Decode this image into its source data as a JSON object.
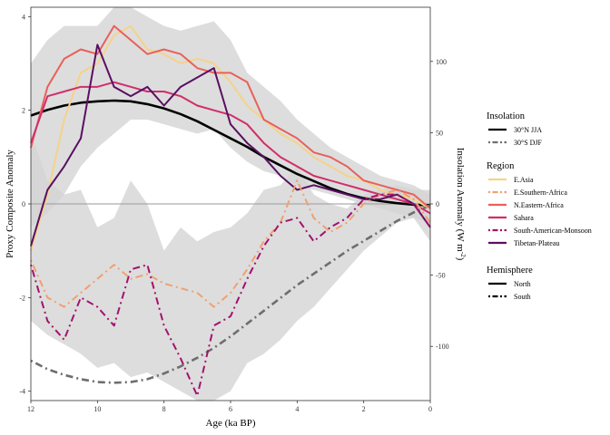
{
  "chart_data": {
    "type": "line",
    "xlabel": "Age (ka BP)",
    "ylabel": "Proxy Composite Anomaly",
    "y2label": "Insolation Anomaly (W m^-2)",
    "y2label_parts": {
      "main": "Insolation Anomaly (W m",
      "sup": "-2",
      "end": ")"
    },
    "xlim": [
      12,
      0
    ],
    "ylim": [
      -4.2,
      4.2
    ],
    "y2lim": [
      -138,
      138
    ],
    "x_reversed": true,
    "x_ticks": [
      12,
      10,
      8,
      6,
      4,
      2,
      0
    ],
    "y_ticks": [
      -4,
      -2,
      0,
      2,
      4
    ],
    "y2_ticks": [
      -100,
      -50,
      0,
      50,
      100
    ],
    "grid": false,
    "zero_line": true,
    "legend_position": "right",
    "legends": [
      {
        "title": "Insolation",
        "items": [
          {
            "label": "30°N JJA",
            "color": "#000000",
            "dash": "solid"
          },
          {
            "label": "30°S DJF",
            "color": "#6e6e6e",
            "dash": "dotdash"
          }
        ]
      },
      {
        "title": "Region",
        "items": [
          {
            "label": "E.Asia",
            "color": "#f5d28a",
            "dash": "solid"
          },
          {
            "label": "E.Southern-Africa",
            "color": "#f0a070",
            "dash": "dotdash"
          },
          {
            "label": "N.Eastern-Africa",
            "color": "#e8605a",
            "dash": "solid"
          },
          {
            "label": "Sahara",
            "color": "#d12e6a",
            "dash": "solid"
          },
          {
            "label": "South-American-Monsoon",
            "color": "#a3126e",
            "dash": "dotdash"
          },
          {
            "label": "Tibetan-Plateau",
            "color": "#5a0f62",
            "dash": "solid"
          }
        ]
      },
      {
        "title": "Hemisphere",
        "items": [
          {
            "label": "North",
            "color": "#000000",
            "dash": "solid"
          },
          {
            "label": "South",
            "color": "#000000",
            "dash": "dotdash"
          }
        ]
      }
    ],
    "bands": {
      "north": {
        "x": [
          12,
          11.5,
          11,
          10.5,
          10,
          9.5,
          9,
          8.5,
          8,
          7.5,
          7,
          6.5,
          6,
          5.5,
          5,
          4.5,
          4,
          3.5,
          3,
          2.5,
          2,
          1.5,
          1,
          0.5,
          0
        ],
        "upper": [
          3.0,
          3.5,
          3.8,
          3.8,
          3.8,
          4.2,
          4.2,
          4.0,
          3.8,
          3.7,
          3.8,
          3.9,
          3.5,
          2.8,
          2.5,
          2.2,
          1.8,
          1.5,
          1.2,
          1.0,
          0.8,
          0.6,
          0.5,
          0.4,
          0.2
        ],
        "lower": [
          -0.5,
          -0.2,
          0.2,
          0.8,
          1.2,
          1.5,
          1.8,
          1.8,
          1.7,
          1.6,
          1.5,
          1.6,
          1.2,
          0.9,
          0.7,
          0.6,
          0.4,
          0.3,
          0.2,
          0.1,
          0.0,
          -0.1,
          -0.2,
          -0.3,
          -0.4
        ]
      },
      "south": {
        "x": [
          12,
          11.5,
          11,
          10.5,
          10,
          9.5,
          9,
          8.5,
          8,
          7.5,
          7,
          6.5,
          6,
          5.5,
          5,
          4.5,
          4,
          3.5,
          3,
          2.5,
          2,
          1.5,
          1,
          0.5,
          0
        ],
        "upper": [
          1.5,
          0.5,
          0.2,
          0.3,
          -0.5,
          -0.3,
          0.5,
          0.0,
          -1.0,
          -0.5,
          -0.8,
          -0.6,
          -0.5,
          -0.2,
          0.3,
          0.4,
          0.8,
          0.2,
          0.0,
          -0.1,
          0.2,
          0.3,
          0.4,
          0.3,
          0.3
        ],
        "lower": [
          -2.5,
          -2.8,
          -3.0,
          -3.2,
          -3.5,
          -3.4,
          -3.7,
          -3.6,
          -3.8,
          -4.0,
          -4.2,
          -4.2,
          -4.0,
          -3.4,
          -3.2,
          -2.9,
          -2.5,
          -2.2,
          -1.8,
          -1.4,
          -1.0,
          -0.7,
          -0.4,
          -0.3,
          -0.8
        ]
      }
    },
    "insolation": [
      {
        "name": "30°N JJA",
        "color": "#000000",
        "dash": "solid",
        "x": [
          12,
          11.5,
          11,
          10.5,
          10,
          9.5,
          9,
          8.5,
          8,
          7.5,
          7,
          6.5,
          6,
          5.5,
          5,
          4.5,
          4,
          3.5,
          3,
          2.5,
          2,
          1.5,
          1,
          0.5,
          0
        ],
        "y": [
          62,
          66,
          69,
          71,
          72,
          72.5,
          72,
          70,
          67,
          63,
          58,
          52,
          46,
          40,
          33,
          27,
          21,
          16,
          11,
          7,
          4,
          2,
          0.5,
          -0.5,
          -1
        ]
      },
      {
        "name": "30°S DJF",
        "color": "#6e6e6e",
        "dash": "dotdash",
        "x": [
          12,
          11.5,
          11,
          10.5,
          10,
          9.5,
          9,
          8.5,
          8,
          7.5,
          7,
          6.5,
          6,
          5.5,
          5,
          4.5,
          4,
          3.5,
          3,
          2.5,
          2,
          1.5,
          1,
          0.5,
          0
        ],
        "y": [
          -110,
          -116,
          -120,
          -123,
          -125,
          -125.5,
          -125,
          -123,
          -119,
          -114,
          -108,
          -101,
          -93,
          -84,
          -75,
          -66,
          -57,
          -49,
          -41,
          -33,
          -26,
          -19,
          -12,
          -6,
          -1
        ]
      }
    ],
    "series": [
      {
        "name": "E.Asia",
        "color": "#f5d28a",
        "dash": "solid",
        "x": [
          12,
          11.5,
          11,
          10.5,
          10,
          9.5,
          9,
          8.5,
          8,
          7.5,
          7,
          6.5,
          6,
          5.5,
          5,
          4.5,
          4,
          3.5,
          3,
          2.5,
          2,
          1.5,
          1,
          0.5,
          0
        ],
        "y": [
          -1.0,
          0.2,
          1.8,
          2.8,
          3.0,
          3.6,
          3.8,
          3.3,
          3.2,
          3.0,
          3.1,
          3.0,
          2.6,
          2.1,
          1.8,
          1.5,
          1.3,
          1.0,
          0.8,
          0.6,
          0.5,
          0.3,
          0.2,
          0.1,
          -0.1
        ]
      },
      {
        "name": "N.Eastern-Africa",
        "color": "#e8605a",
        "dash": "solid",
        "x": [
          12,
          11.5,
          11,
          10.5,
          10,
          9.5,
          9,
          8.5,
          8,
          7.5,
          7,
          6.5,
          6,
          5.5,
          5,
          4.5,
          4,
          3.5,
          3,
          2.5,
          2,
          1.5,
          1,
          0.5,
          0
        ],
        "y": [
          1.2,
          2.5,
          3.1,
          3.3,
          3.2,
          3.8,
          3.5,
          3.2,
          3.3,
          3.2,
          2.9,
          2.8,
          2.8,
          2.6,
          1.8,
          1.6,
          1.4,
          1.1,
          1.0,
          0.8,
          0.5,
          0.4,
          0.3,
          0.2,
          -0.1
        ]
      },
      {
        "name": "Sahara",
        "color": "#d12e6a",
        "dash": "solid",
        "x": [
          12,
          11.5,
          11,
          10.5,
          10,
          9.5,
          9,
          8.5,
          8,
          7.5,
          7,
          6.5,
          6,
          5.5,
          5,
          4.5,
          4,
          3.5,
          3,
          2.5,
          2,
          1.5,
          1,
          0.5,
          0
        ],
        "y": [
          1.3,
          2.3,
          2.4,
          2.5,
          2.5,
          2.6,
          2.5,
          2.4,
          2.4,
          2.3,
          2.1,
          2.0,
          1.9,
          1.7,
          1.3,
          1.0,
          0.8,
          0.6,
          0.5,
          0.4,
          0.3,
          0.2,
          0.1,
          0.0,
          -0.2
        ]
      },
      {
        "name": "Tibetan-Plateau",
        "color": "#5a0f62",
        "dash": "solid",
        "x": [
          12,
          11.5,
          11,
          10.5,
          10,
          9.5,
          9,
          8.5,
          8,
          7.5,
          7,
          6.5,
          6,
          5.5,
          5,
          4.5,
          4,
          3.5,
          3,
          2.5,
          2,
          1.5,
          1,
          0.5,
          0
        ],
        "y": [
          -0.9,
          0.3,
          0.8,
          1.4,
          3.4,
          2.5,
          2.3,
          2.5,
          2.1,
          2.5,
          2.7,
          2.9,
          1.7,
          1.3,
          1.0,
          0.6,
          0.3,
          0.4,
          0.3,
          0.2,
          0.1,
          0.1,
          0.2,
          0.0,
          -0.5
        ]
      },
      {
        "name": "E.Southern-Africa",
        "color": "#f0a070",
        "dash": "dotdash",
        "x": [
          12,
          11.5,
          11,
          10.5,
          10,
          9.5,
          9,
          8.5,
          8,
          7.5,
          7,
          6.5,
          6,
          5.5,
          5,
          4.5,
          4,
          3.5,
          3,
          2.5,
          2,
          1.5,
          1,
          0.5,
          0
        ],
        "y": [
          -1.2,
          -2.0,
          -2.2,
          -1.9,
          -1.6,
          -1.3,
          -1.6,
          -1.5,
          -1.7,
          -1.8,
          -1.9,
          -2.2,
          -1.9,
          -1.4,
          -0.8,
          -0.4,
          0.5,
          -0.3,
          -0.6,
          -0.4,
          0.0,
          0.2,
          0.3,
          0.1,
          -0.4
        ]
      },
      {
        "name": "South-American-Monsoon",
        "color": "#a3126e",
        "dash": "dotdash",
        "x": [
          12,
          11.5,
          11,
          10.5,
          10,
          9.5,
          9,
          8.5,
          8,
          7.5,
          7,
          6.5,
          6,
          5.5,
          5,
          4.5,
          4,
          3.5,
          3,
          2.5,
          2,
          1.5,
          1,
          0.5,
          0
        ],
        "y": [
          -1.3,
          -2.5,
          -2.9,
          -2.0,
          -2.2,
          -2.6,
          -1.4,
          -1.3,
          -2.6,
          -3.3,
          -4.1,
          -2.6,
          -2.4,
          -1.6,
          -0.9,
          -0.4,
          -0.3,
          -0.8,
          -0.5,
          -0.3,
          0.1,
          0.2,
          0.2,
          0.0,
          -0.5
        ]
      }
    ]
  }
}
